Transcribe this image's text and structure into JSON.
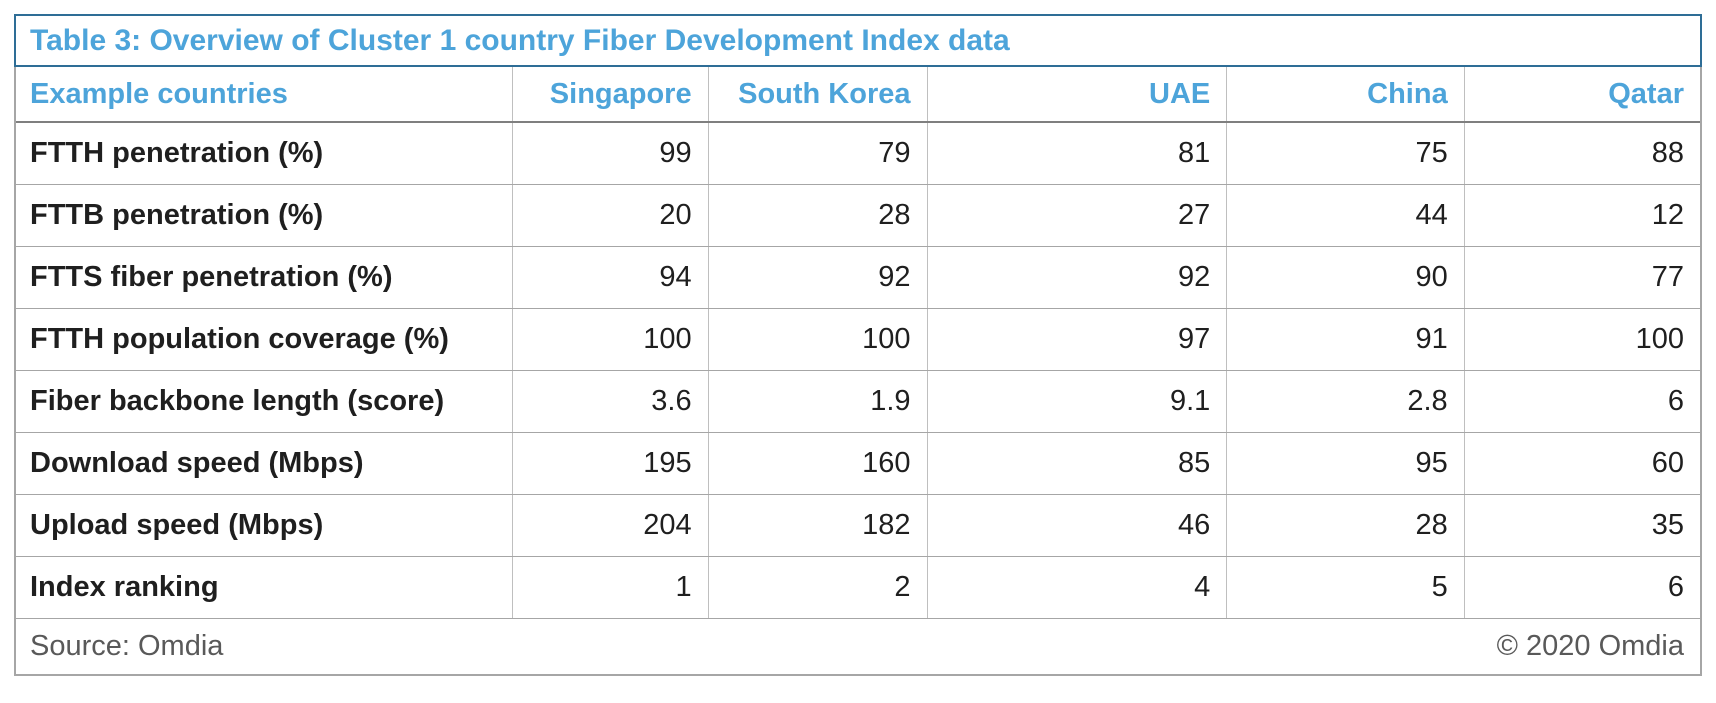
{
  "table": {
    "title": "Table 3: Overview of Cluster 1 country Fiber Development Index data",
    "header": {
      "label": "Example countries",
      "countries": [
        "Singapore",
        "South Korea",
        "UAE",
        "China",
        "Qatar"
      ]
    },
    "rows": [
      {
        "label": "FTTH penetration (%)",
        "values": [
          "99",
          "79",
          "81",
          "75",
          "88"
        ]
      },
      {
        "label": "FTTB penetration (%)",
        "values": [
          "20",
          "28",
          "27",
          "44",
          "12"
        ]
      },
      {
        "label": "FTTS fiber penetration (%)",
        "values": [
          "94",
          "92",
          "92",
          "90",
          "77"
        ]
      },
      {
        "label": "FTTH population coverage (%)",
        "values": [
          "100",
          "100",
          "97",
          "91",
          "100"
        ]
      },
      {
        "label": "Fiber backbone length (score)",
        "values": [
          "3.6",
          "1.9",
          "9.1",
          "2.8",
          "6"
        ]
      },
      {
        "label": "Download speed (Mbps)",
        "values": [
          "195",
          "160",
          "85",
          "95",
          "60"
        ]
      },
      {
        "label": "Upload speed (Mbps)",
        "values": [
          "204",
          "182",
          "46",
          "28",
          "35"
        ]
      },
      {
        "label": "Index ranking",
        "values": [
          "1",
          "2",
          "4",
          "5",
          "6"
        ]
      }
    ],
    "footer": {
      "source": "Source: Omdia",
      "copyright": "© 2020 Omdia"
    }
  },
  "colors": {
    "title_text": "#4da4da",
    "title_border": "#2e6d96",
    "grid_outer": "#a6a6a6",
    "grid_vertical": "#bfbfbf",
    "header_underline": "#7f7f7f",
    "body_text": "#1f1f1f",
    "footer_text": "#595959",
    "background": "#ffffff"
  }
}
